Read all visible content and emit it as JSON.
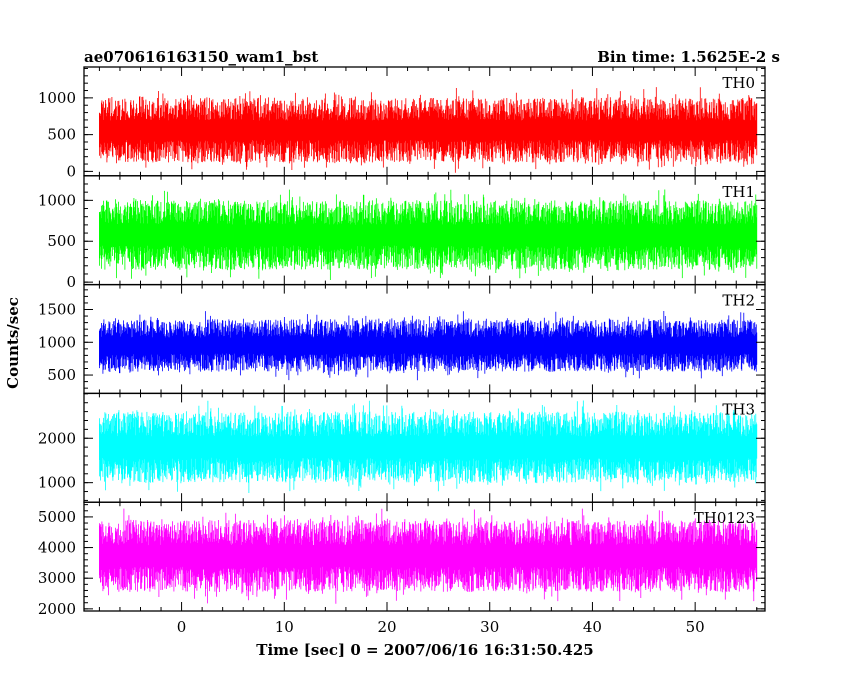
{
  "header": {
    "left_title": "ae070616163150_wam1_bst",
    "right_title": "Bin time: 1.5625E-2 s"
  },
  "ylabel": "Counts/sec",
  "xlabel": "Time [sec] 0 = 2007/06/16 16:31:50.425",
  "chart_data": {
    "type": "line",
    "title": "ae070616163150_wam1_bst",
    "subtitle": "Bin time: 1.5625E-2 s",
    "xlabel": "Time [sec] 0 = 2007/06/16 16:31:50.425",
    "ylabel": "Counts/sec",
    "xlim": [
      -9.5,
      56.8
    ],
    "x_data_range": [
      -8,
      56
    ],
    "xticks": [
      0,
      10,
      20,
      30,
      40,
      50
    ],
    "xtick_labels": [
      "0",
      "10",
      "20",
      "30",
      "40",
      "50"
    ],
    "grid": false,
    "panels": [
      {
        "name": "TH0",
        "color": "#ff0000",
        "ylim": [
          -60,
          1420
        ],
        "yticks": [
          0,
          500,
          1000
        ],
        "ytick_labels": [
          "0",
          "500",
          "1000"
        ],
        "typical_low": 120,
        "typical_high": 1000,
        "mean": 600
      },
      {
        "name": "TH1",
        "color": "#00ff00",
        "ylim": [
          -30,
          1300
        ],
        "yticks": [
          0,
          500,
          1000
        ],
        "ytick_labels": [
          "0",
          "500",
          "1000"
        ],
        "typical_low": 150,
        "typical_high": 1000,
        "mean": 600
      },
      {
        "name": "TH2",
        "color": "#0000ff",
        "ylim": [
          220,
          1880
        ],
        "yticks": [
          500,
          1000,
          1500
        ],
        "ytick_labels": [
          "500",
          "1000",
          "1500"
        ],
        "typical_low": 550,
        "typical_high": 1350,
        "mean": 950
      },
      {
        "name": "TH3",
        "color": "#00ffff",
        "ylim": [
          560,
          3010
        ],
        "yticks": [
          1000,
          2000
        ],
        "ytick_labels": [
          "1000",
          "2000"
        ],
        "typical_low": 1000,
        "typical_high": 2600,
        "mean": 1800
      },
      {
        "name": "TH0123",
        "color": "#ff00ff",
        "ylim": [
          1930,
          5480
        ],
        "yticks": [
          2000,
          3000,
          4000,
          5000
        ],
        "ytick_labels": [
          "2000",
          "3000",
          "4000",
          "5000"
        ],
        "typical_low": 2550,
        "typical_high": 4900,
        "mean": 3700
      }
    ]
  }
}
